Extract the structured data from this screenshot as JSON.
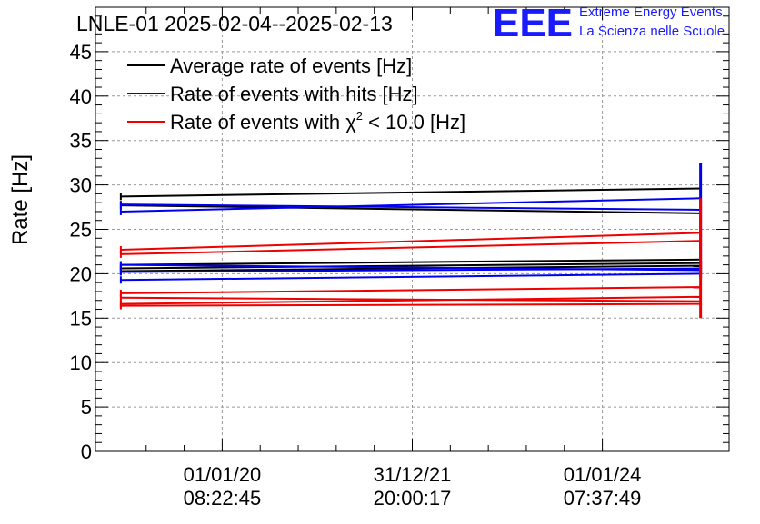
{
  "header": {
    "title": "LNLE-01 2025-02-04--2025-02-13",
    "logo_text": "EEE",
    "org_line1": "Extreme Energy Events",
    "org_line2": "La Scienza nelle Scuole"
  },
  "colors": {
    "black_series": "#000000",
    "blue_series": "#0000ee",
    "red_series": "#ee0000",
    "logo": "#1a1aff",
    "grid": "#999999"
  },
  "chart_data": {
    "type": "line",
    "title": "LNLE-01 2025-02-04--2025-02-13",
    "ylabel": "Rate [Hz]",
    "xlabel": "",
    "ylim": [
      0,
      50
    ],
    "yticks": [
      0,
      5,
      10,
      15,
      20,
      25,
      30,
      35,
      40,
      45
    ],
    "xticks": [
      {
        "x": 0.2,
        "line1": "01/01/20",
        "line2": "08:22:45"
      },
      {
        "x": 0.5,
        "line1": "31/12/21",
        "line2": "20:00:17"
      },
      {
        "x": 0.8,
        "line1": "01/01/24",
        "line2": "07:37:49"
      }
    ],
    "grid": true,
    "legend_position": "top-left",
    "legend": [
      {
        "label": "Average rate of events [Hz]",
        "color": "#000000"
      },
      {
        "label": "Rate of events with hits [Hz]",
        "color": "#0000ee"
      },
      {
        "label_prefix": "Rate of events with ",
        "label_chi": "χ",
        "label_sup": "2",
        "label_suffix": " < 10.0 [Hz]",
        "color": "#ee0000"
      }
    ],
    "series": [
      {
        "name": "Average rate of events [Hz]",
        "color": "#000000",
        "segments": [
          {
            "x": [
              0.04,
              0.955
            ],
            "y": [
              28.7,
              29.6
            ]
          },
          {
            "x": [
              0.04,
              0.955
            ],
            "y": [
              27.7,
              26.8
            ]
          },
          {
            "x": [
              0.04,
              0.955
            ],
            "y": [
              21.0,
              21.6
            ]
          },
          {
            "x": [
              0.04,
              0.955
            ],
            "y": [
              20.6,
              21.2
            ]
          },
          {
            "x": [
              0.04,
              0.955
            ],
            "y": [
              20.3,
              20.9
            ]
          }
        ],
        "end_spike": {
          "x": 0.955,
          "y": [
            20.0,
            21.5
          ]
        }
      },
      {
        "name": "Rate of events with hits [Hz]",
        "color": "#0000ee",
        "segments": [
          {
            "x": [
              0.04,
              0.955
            ],
            "y": [
              27.8,
              27.2
            ]
          },
          {
            "x": [
              0.04,
              0.955
            ],
            "y": [
              27.0,
              28.5
            ]
          },
          {
            "x": [
              0.04,
              0.955
            ],
            "y": [
              21.0,
              20.4
            ]
          },
          {
            "x": [
              0.04,
              0.955
            ],
            "y": [
              20.2,
              20.6
            ]
          },
          {
            "x": [
              0.04,
              0.955
            ],
            "y": [
              19.3,
              20.0
            ]
          }
        ],
        "end_spike": {
          "x": 0.955,
          "y": [
            19.5,
            32.5
          ]
        }
      },
      {
        "name": "Rate of events with χ² < 10.0 [Hz]",
        "color": "#ee0000",
        "segments": [
          {
            "x": [
              0.04,
              0.955
            ],
            "y": [
              22.7,
              24.6
            ]
          },
          {
            "x": [
              0.04,
              0.955
            ],
            "y": [
              22.2,
              23.7
            ]
          },
          {
            "x": [
              0.04,
              0.955
            ],
            "y": [
              17.8,
              18.5
            ]
          },
          {
            "x": [
              0.04,
              0.955
            ],
            "y": [
              17.3,
              16.9
            ]
          },
          {
            "x": [
              0.04,
              0.955
            ],
            "y": [
              16.6,
              17.4
            ]
          },
          {
            "x": [
              0.04,
              0.955
            ],
            "y": [
              16.4,
              16.6
            ]
          }
        ],
        "end_spike": {
          "x": 0.955,
          "y": [
            15.0,
            28.5
          ]
        }
      }
    ]
  }
}
